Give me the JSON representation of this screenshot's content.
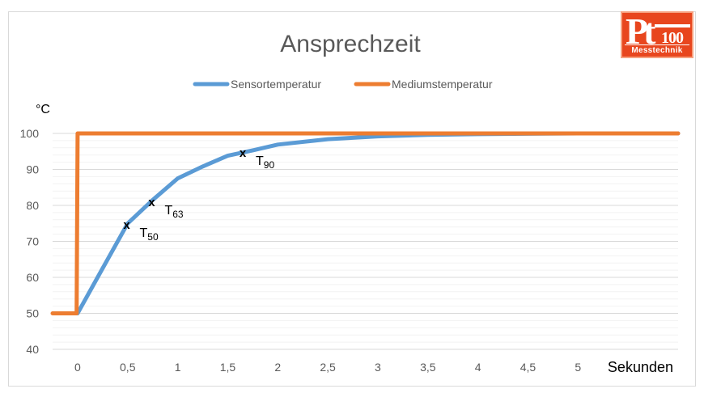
{
  "chart_data": {
    "type": "line",
    "title": "Ansprechzeit",
    "ylabel": "°C",
    "xlabel": "Sekunden",
    "ylim": [
      40,
      100
    ],
    "y_ticks": [
      "40",
      "50",
      "60",
      "70",
      "80",
      "90",
      "100"
    ],
    "y_tick_values": [
      40,
      50,
      60,
      70,
      80,
      90,
      100
    ],
    "x_ticks": [
      "0",
      "0,5",
      "1",
      "1,5",
      "2",
      "2,5",
      "3",
      "3,5",
      "4",
      "4,5",
      "5"
    ],
    "x_tick_values": [
      0,
      0.5,
      1,
      1.5,
      2,
      2.5,
      3,
      3.5,
      4,
      4.5,
      5
    ],
    "xlim": [
      -0.25,
      6
    ],
    "grid": true,
    "legend_position": "top-center",
    "series": [
      {
        "name": "Sensortemperatur",
        "color": "#5b9bd5",
        "x": [
          0,
          0.25,
          0.5,
          0.75,
          1,
          1.25,
          1.5,
          1.75,
          2,
          2.5,
          3,
          3.5,
          4,
          4.5,
          5,
          6
        ],
        "y": [
          50,
          62.5,
          75,
          81.5,
          87.5,
          90.8,
          93.8,
          95.3,
          96.9,
          98.4,
          99.2,
          99.6,
          99.8,
          99.9,
          100,
          100
        ]
      },
      {
        "name": "Mediumstemperatur",
        "color": "#ed7d31",
        "x": [
          -0.25,
          -0.01,
          0,
          6
        ],
        "y": [
          50,
          50,
          100,
          100
        ]
      }
    ],
    "markers": [
      {
        "label": "T",
        "sub": "50",
        "x": 0.49,
        "y": 74.6
      },
      {
        "label": "T",
        "sub": "63",
        "x": 0.74,
        "y": 80.9
      },
      {
        "label": "T",
        "sub": "90",
        "x": 1.65,
        "y": 94.6
      }
    ]
  },
  "logo": {
    "big": "Pt",
    "number": "100",
    "word": "Messtechnik"
  }
}
